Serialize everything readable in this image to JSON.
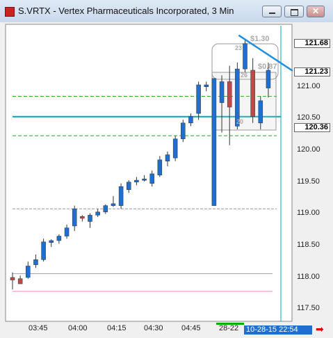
{
  "window": {
    "title": "S.VRTX - Vertex Pharmaceuticals Incorporated, 3 Min",
    "buttons": [
      "minimize",
      "maximize",
      "close"
    ]
  },
  "price_axis": {
    "ticks": [
      "121.00",
      "120.50",
      "120.00",
      "119.50",
      "119.00",
      "118.50",
      "118.00",
      "117.50"
    ],
    "labels": [
      "121.68",
      "121.23",
      "120.36"
    ]
  },
  "time_axis": {
    "ticks": [
      "03:45",
      "04:00",
      "04:15",
      "04:30",
      "04:45",
      "28-22"
    ],
    "current_time": "10-28-15  22:54"
  },
  "annotations": {
    "box_top": "$1.30",
    "box_right": "$0.87",
    "small": [
      "23",
      "26",
      "20"
    ]
  },
  "colors": {
    "up_candle": "#1e6fd0",
    "down_candle": "#c04848",
    "cyan_line": "#00a8b5",
    "green_dash": "#22aa22",
    "pink_line": "#f080c0",
    "trend_line": "#1e8fe0"
  },
  "chart_data": {
    "type": "candlestick",
    "x_labels": [
      "03:45",
      "04:00",
      "04:15",
      "04:30",
      "04:45",
      "28-22"
    ],
    "y_range": [
      117.3,
      121.9
    ],
    "candles": [
      {
        "o": 117.97,
        "h": 118.05,
        "l": 117.78,
        "c": 117.93
      },
      {
        "o": 117.95,
        "h": 118.0,
        "l": 117.88,
        "c": 117.87
      },
      {
        "o": 117.97,
        "h": 118.22,
        "l": 117.95,
        "c": 118.15
      },
      {
        "o": 118.17,
        "h": 118.33,
        "l": 118.12,
        "c": 118.25
      },
      {
        "o": 118.25,
        "h": 118.58,
        "l": 118.22,
        "c": 118.53
      },
      {
        "o": 118.52,
        "h": 118.57,
        "l": 118.45,
        "c": 118.55
      },
      {
        "o": 118.55,
        "h": 118.65,
        "l": 118.5,
        "c": 118.62
      },
      {
        "o": 118.62,
        "h": 118.8,
        "l": 118.58,
        "c": 118.75
      },
      {
        "o": 118.78,
        "h": 119.1,
        "l": 118.7,
        "c": 119.05
      },
      {
        "o": 118.93,
        "h": 118.95,
        "l": 118.85,
        "c": 118.9
      },
      {
        "o": 118.85,
        "h": 118.98,
        "l": 118.75,
        "c": 118.95
      },
      {
        "o": 118.95,
        "h": 119.05,
        "l": 118.92,
        "c": 119.0
      },
      {
        "o": 119.0,
        "h": 119.12,
        "l": 118.97,
        "c": 119.1
      },
      {
        "o": 119.1,
        "h": 119.25,
        "l": 119.08,
        "c": 119.13
      },
      {
        "o": 119.1,
        "h": 119.45,
        "l": 119.05,
        "c": 119.4
      },
      {
        "o": 119.35,
        "h": 119.5,
        "l": 119.3,
        "c": 119.47
      },
      {
        "o": 119.47,
        "h": 119.55,
        "l": 119.42,
        "c": 119.5
      },
      {
        "o": 119.52,
        "h": 119.58,
        "l": 119.48,
        "c": 119.52
      },
      {
        "o": 119.45,
        "h": 119.65,
        "l": 119.4,
        "c": 119.6
      },
      {
        "o": 119.58,
        "h": 119.88,
        "l": 119.55,
        "c": 119.82
      },
      {
        "o": 119.8,
        "h": 119.95,
        "l": 119.72,
        "c": 119.9
      },
      {
        "o": 119.85,
        "h": 120.2,
        "l": 119.8,
        "c": 120.15
      },
      {
        "o": 120.15,
        "h": 120.45,
        "l": 120.1,
        "c": 120.4
      },
      {
        "o": 120.4,
        "h": 120.55,
        "l": 120.35,
        "c": 120.5
      },
      {
        "o": 120.55,
        "h": 121.05,
        "l": 120.45,
        "c": 121.0
      },
      {
        "o": 120.97,
        "h": 121.05,
        "l": 120.9,
        "c": 121.0
      },
      {
        "o": 119.1,
        "h": 121.1,
        "l": 119.1,
        "c": 121.1
      },
      {
        "o": 120.72,
        "h": 121.15,
        "l": 120.25,
        "c": 121.05
      },
      {
        "o": 121.05,
        "h": 121.3,
        "l": 120.05,
        "c": 120.65
      },
      {
        "o": 120.35,
        "h": 121.35,
        "l": 120.3,
        "c": 121.25
      },
      {
        "o": 121.25,
        "h": 121.7,
        "l": 121.2,
        "c": 121.65
      },
      {
        "o": 121.23,
        "h": 121.42,
        "l": 120.4,
        "c": 120.5
      },
      {
        "o": 120.4,
        "h": 120.82,
        "l": 120.3,
        "c": 120.75
      },
      {
        "o": 120.95,
        "h": 121.35,
        "l": 120.8,
        "c": 121.23
      }
    ],
    "horizontal_lines": [
      {
        "price": 120.5,
        "style": "cyan"
      },
      {
        "price": 120.82,
        "style": "green-dash"
      },
      {
        "price": 120.2,
        "style": "green-dash"
      },
      {
        "price": 119.05,
        "style": "gray-dash"
      },
      {
        "price": 118.03,
        "style": "pink"
      },
      {
        "price": 117.75,
        "style": "pink"
      }
    ],
    "trend_line": {
      "from_index": 29,
      "from_price": 121.78,
      "to_price": 121.22
    }
  }
}
